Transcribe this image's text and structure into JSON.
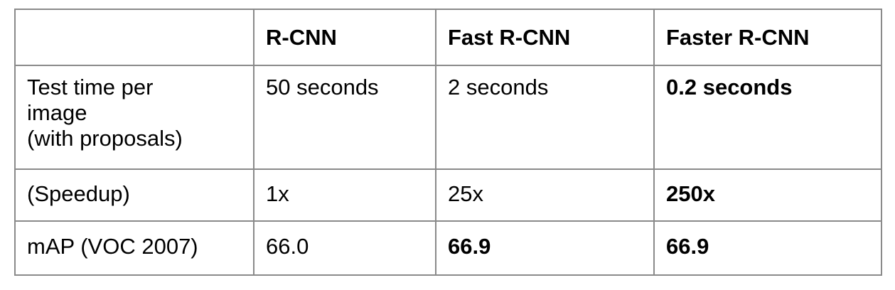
{
  "table": {
    "header": [
      "",
      "R-CNN",
      "Fast R-CNN",
      "Faster R-CNN"
    ],
    "rows": [
      {
        "label_lines": [
          "Test time per",
          "image",
          "(with proposals)"
        ],
        "cells": [
          "50 seconds",
          "2 seconds",
          "0.2 seconds"
        ],
        "bold": [
          false,
          false,
          true
        ]
      },
      {
        "label_lines": [
          "(Speedup)"
        ],
        "cells": [
          "1x",
          "25x",
          "250x"
        ],
        "bold": [
          false,
          false,
          true
        ]
      },
      {
        "label_lines": [
          "mAP (VOC 2007)"
        ],
        "cells": [
          "66.0",
          "66.9",
          "66.9"
        ],
        "bold": [
          false,
          true,
          true
        ]
      }
    ]
  }
}
